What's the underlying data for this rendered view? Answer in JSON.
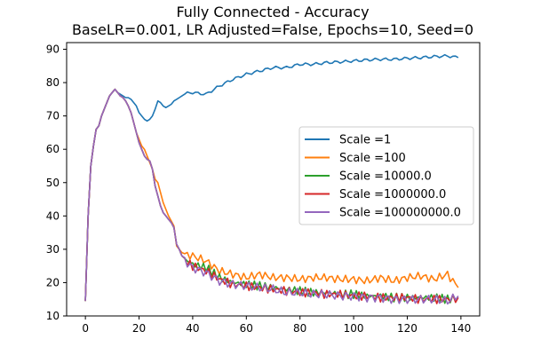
{
  "chart_data": {
    "type": "line",
    "title": "Fully Connected - Accuracy",
    "subtitle": "BaseLR=0.001, LR Adjusted=False, Epochs=10, Seed=0",
    "xlabel": "",
    "ylabel": "",
    "xlim": [
      -7,
      147
    ],
    "ylim": [
      10,
      92
    ],
    "x_ticks": [
      0,
      20,
      40,
      60,
      80,
      100,
      120,
      140
    ],
    "y_ticks": [
      10,
      20,
      30,
      40,
      50,
      60,
      70,
      80,
      90
    ],
    "grid": false,
    "legend_position": "center-right",
    "x_anchors": [
      0,
      1,
      2,
      3,
      4,
      5,
      6,
      7,
      8,
      9,
      10,
      11,
      12,
      13,
      14,
      15,
      16,
      17,
      18,
      19,
      20,
      21,
      22,
      23,
      24,
      25,
      26,
      27,
      28,
      29,
      30,
      31,
      32,
      33,
      34,
      35,
      36,
      37,
      38,
      39,
      40,
      45,
      50,
      55,
      60,
      65,
      70,
      75,
      80,
      85,
      90,
      95,
      100,
      105,
      110,
      115,
      120,
      125,
      130,
      135,
      139
    ],
    "series": [
      {
        "name": "Scale =1",
        "color": "#1f77b4",
        "values": [
          14.5,
          40,
          55,
          61,
          66,
          67,
          70,
          72,
          74,
          76,
          77,
          78,
          77,
          76.5,
          76,
          75.5,
          75.5,
          75,
          74,
          73,
          71,
          70,
          69,
          68.5,
          69,
          70,
          72,
          74.5,
          74,
          73,
          72.5,
          73,
          73.5,
          74.5,
          75,
          75.5,
          76,
          76.5,
          76.8,
          77,
          77,
          76.5,
          79,
          81,
          82.5,
          83.5,
          84.5,
          84.5,
          85.5,
          85.5,
          86,
          86.2,
          86.5,
          86.8,
          87,
          87,
          87.3,
          87.5,
          87.8,
          88,
          87.5
        ]
      },
      {
        "name": "Scale =100",
        "color": "#ff7f0e",
        "values": [
          14.5,
          40,
          55,
          61,
          66,
          67,
          70,
          72,
          74,
          76,
          77,
          78,
          77,
          76,
          75.5,
          74.5,
          73,
          71,
          68,
          65,
          63,
          61,
          60,
          58,
          56,
          54,
          51,
          50,
          47,
          44,
          42,
          40,
          38.5,
          37,
          31,
          30,
          29,
          28.5,
          28.3,
          28.2,
          28,
          26.5,
          23.5,
          22.5,
          21.5,
          22.5,
          21.5,
          21.5,
          21,
          21.5,
          21.5,
          21,
          21,
          20.5,
          21.5,
          20.5,
          21.5,
          22,
          21,
          22.5,
          18.5
        ]
      },
      {
        "name": "Scale =10000.0",
        "color": "#2ca02c",
        "values": [
          14.5,
          40,
          55,
          61,
          66,
          67,
          70,
          72,
          74,
          76,
          77,
          78,
          77,
          76,
          75.5,
          74.5,
          73,
          71,
          68,
          65,
          62,
          60,
          58,
          57,
          56.5,
          54,
          49,
          46,
          43,
          41,
          40,
          39,
          38,
          36.5,
          31.5,
          30,
          28,
          27,
          26.5,
          26,
          25.5,
          24.5,
          21.5,
          20,
          19.5,
          19,
          18.5,
          18,
          17.5,
          17,
          17,
          16.5,
          16.5,
          16,
          16,
          15.5,
          15.5,
          15.5,
          15.5,
          15,
          15.5
        ]
      },
      {
        "name": "Scale =1000000.0",
        "color": "#d62728",
        "values": [
          14.5,
          40,
          55,
          61,
          66,
          67,
          70,
          72,
          74,
          76,
          77,
          78,
          77,
          76,
          75.5,
          74.5,
          73,
          71,
          68,
          65,
          62,
          60,
          58,
          57,
          56.5,
          54,
          49,
          46,
          43,
          41,
          40,
          39,
          38,
          36.5,
          31.5,
          30,
          28,
          27,
          26,
          25.5,
          25,
          23.5,
          21,
          19.5,
          19,
          18.5,
          18,
          17.5,
          17,
          17,
          16.5,
          16.5,
          16,
          16,
          15.5,
          15.5,
          15.5,
          15,
          15,
          15,
          15.5
        ]
      },
      {
        "name": "Scale =100000000.0",
        "color": "#9467bd",
        "values": [
          14.5,
          40,
          55,
          61,
          66,
          67,
          70,
          72,
          74,
          76,
          77,
          78,
          77,
          76,
          75.5,
          74.5,
          73,
          71,
          68,
          65,
          62,
          60,
          58,
          57,
          56.5,
          54,
          49,
          46,
          43,
          41,
          40,
          39,
          38,
          36.5,
          31.5,
          30,
          28,
          27,
          26,
          25,
          24.5,
          23,
          20.5,
          19.5,
          19,
          18.5,
          18,
          17,
          17,
          16.5,
          16.5,
          16,
          16,
          15.5,
          15.5,
          15,
          15,
          15,
          15,
          14.5,
          16
        ]
      }
    ]
  }
}
